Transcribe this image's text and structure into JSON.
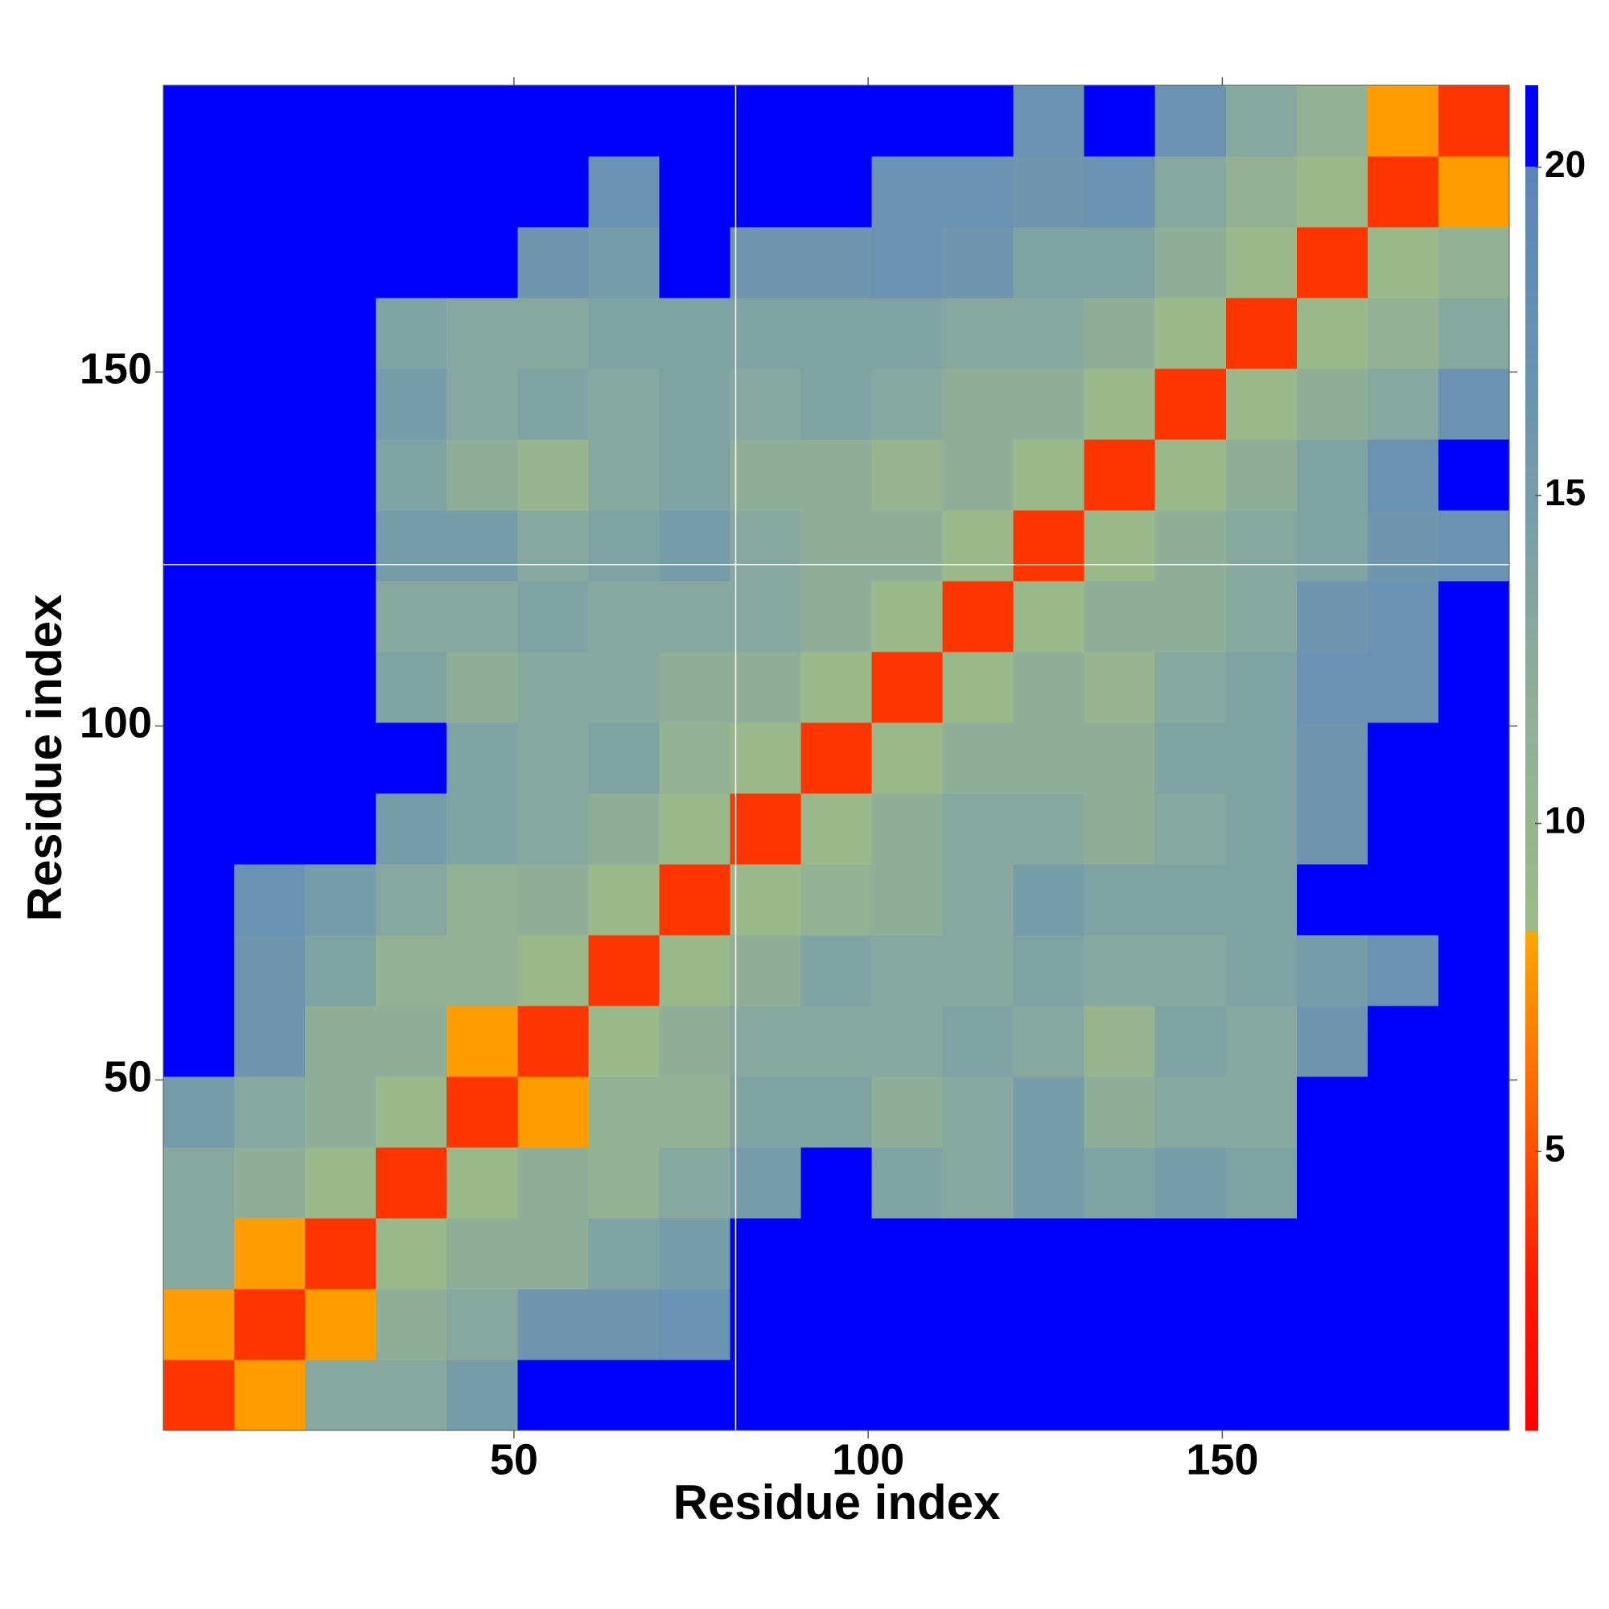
{
  "chart_data": {
    "type": "heatmap",
    "x_label": "Residue index",
    "y_label": "Residue index",
    "bins": [
      0.5,
      10.5,
      20.5,
      30.5,
      40.5,
      50.5,
      60.5,
      70.5,
      80.5,
      90.5,
      100.5,
      110.5,
      120.5,
      130.5,
      140.5,
      150.5,
      160.5,
      170.5,
      180.5,
      190.5
    ],
    "z": [
      [
        4,
        8,
        13,
        13,
        15,
        21,
        21,
        21,
        21,
        21,
        21,
        21,
        21,
        21,
        21,
        21,
        21,
        21,
        21
      ],
      [
        8,
        4,
        8,
        12,
        13,
        16,
        16,
        17,
        21,
        21,
        21,
        21,
        21,
        21,
        21,
        21,
        21,
        21,
        21
      ],
      [
        13,
        8,
        4,
        9,
        12,
        12,
        14,
        15,
        21,
        21,
        21,
        21,
        21,
        21,
        21,
        21,
        21,
        21,
        21
      ],
      [
        13,
        12,
        9,
        4,
        9,
        12,
        11,
        13,
        15,
        21,
        14,
        13,
        15,
        14,
        15,
        14,
        21,
        21,
        21
      ],
      [
        15,
        13,
        12,
        9,
        4,
        8,
        11,
        11,
        14,
        14,
        12,
        13,
        15,
        12,
        13,
        13,
        21,
        21,
        21
      ],
      [
        21,
        16,
        12,
        12,
        8,
        4,
        9,
        12,
        13,
        13,
        13,
        14,
        13,
        10,
        14,
        13,
        16,
        21,
        21
      ],
      [
        21,
        16,
        14,
        11,
        11,
        9,
        4,
        9,
        12,
        14,
        13,
        13,
        14,
        13,
        13,
        14,
        15,
        17,
        21
      ],
      [
        21,
        17,
        15,
        13,
        11,
        12,
        9,
        4,
        9,
        11,
        12,
        13,
        15,
        14,
        14,
        14,
        21,
        21,
        21
      ],
      [
        21,
        21,
        21,
        15,
        14,
        13,
        12,
        9,
        4,
        9,
        12,
        13,
        13,
        12,
        13,
        14,
        16,
        21,
        21
      ],
      [
        21,
        21,
        21,
        21,
        14,
        13,
        14,
        11,
        9,
        4,
        9,
        12,
        12,
        12,
        14,
        14,
        16,
        21,
        21
      ],
      [
        21,
        21,
        21,
        14,
        12,
        13,
        13,
        12,
        12,
        9,
        4,
        9,
        12,
        10,
        13,
        14,
        17,
        17,
        21
      ],
      [
        21,
        21,
        21,
        13,
        13,
        14,
        13,
        13,
        13,
        12,
        9,
        4,
        9,
        12,
        12,
        13,
        16,
        17,
        21
      ],
      [
        21,
        21,
        21,
        15,
        15,
        13,
        14,
        15,
        13,
        12,
        12,
        9,
        4,
        9,
        12,
        13,
        14,
        16,
        17
      ],
      [
        21,
        21,
        21,
        14,
        12,
        10,
        13,
        14,
        12,
        12,
        10,
        12,
        9,
        4,
        9,
        12,
        14,
        17,
        21
      ],
      [
        21,
        21,
        21,
        15,
        13,
        14,
        13,
        14,
        13,
        14,
        13,
        12,
        12,
        9,
        4,
        9,
        12,
        13,
        17
      ],
      [
        21,
        21,
        21,
        14,
        13,
        13,
        14,
        14,
        14,
        14,
        14,
        13,
        13,
        12,
        9,
        4,
        9,
        11,
        13
      ],
      [
        21,
        21,
        21,
        21,
        21,
        16,
        15,
        21,
        16,
        16,
        17,
        16,
        14,
        14,
        12,
        9,
        4,
        9,
        11
      ],
      [
        21,
        21,
        21,
        21,
        21,
        21,
        17,
        21,
        21,
        21,
        17,
        17,
        16,
        17,
        13,
        11,
        9,
        4,
        8
      ],
      [
        21,
        21,
        21,
        21,
        21,
        21,
        21,
        21,
        21,
        21,
        21,
        21,
        17,
        21,
        17,
        13,
        11,
        8,
        4
      ]
    ],
    "xlim": [
      0.5,
      190.5
    ],
    "ylim": [
      0.5,
      190.5
    ],
    "xticks": [
      50,
      100,
      150
    ],
    "yticks": [
      50,
      100,
      150
    ],
    "zlim": [
      0.75,
      21.25
    ],
    "zticks": [
      5,
      10,
      15,
      20
    ],
    "colorscale": [
      [
        0.75,
        "#ff0000"
      ],
      [
        3,
        "#ff1a00"
      ],
      [
        5,
        "#ff5000"
      ],
      [
        7,
        "#ff8400"
      ],
      [
        8.3,
        "#ffa500"
      ],
      [
        8.4,
        "#9cbb88"
      ],
      [
        12,
        "#8fae98"
      ],
      [
        16,
        "#6f96ae"
      ],
      [
        20,
        "#5a86b8"
      ],
      [
        20.01,
        "#0000ff"
      ],
      [
        21.25,
        "#0000ff"
      ]
    ],
    "reference_lines": {
      "x": [
        81.3
      ],
      "y": [
        122.8
      ]
    }
  }
}
